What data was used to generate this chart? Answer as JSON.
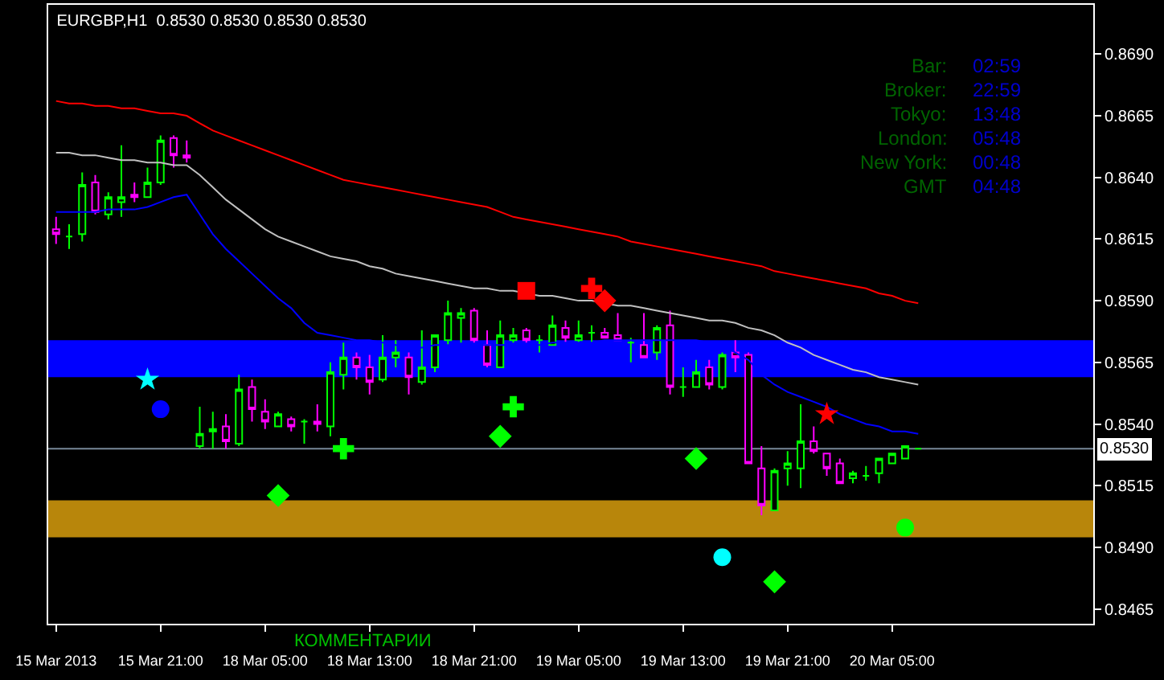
{
  "chart_data": {
    "type": "candlestick",
    "title": "EURGBP,H1  0.8530 0.8530 0.8530 0.8530",
    "categories": [
      "15 Mar 2013",
      null,
      null,
      null,
      null,
      null,
      null,
      null,
      "15 Mar 21:00",
      null,
      null,
      null,
      null,
      null,
      null,
      null,
      "18 Mar 05:00",
      null,
      null,
      null,
      null,
      null,
      null,
      null,
      "18 Mar 13:00",
      null,
      null,
      null,
      null,
      null,
      null,
      null,
      "18 Mar 21:00",
      null,
      null,
      null,
      null,
      null,
      null,
      null,
      "19 Mar 05:00",
      null,
      null,
      null,
      null,
      null,
      null,
      null,
      "19 Mar 13:00",
      null,
      null,
      null,
      null,
      null,
      null,
      null,
      "19 Mar 21:00",
      null,
      null,
      null,
      null,
      null,
      null,
      null,
      "20 Mar 05:00",
      null,
      null
    ],
    "ohlc": [
      [
        0.8619,
        0.8624,
        0.8613,
        0.8617
      ],
      [
        0.8616,
        0.8621,
        0.8611,
        0.8616
      ],
      [
        0.8617,
        0.8642,
        0.8614,
        0.8637
      ],
      [
        0.8638,
        0.8641,
        0.8625,
        0.8626
      ],
      [
        0.8625,
        0.8634,
        0.8623,
        0.8632
      ],
      [
        0.863,
        0.8653,
        0.8624,
        0.8632
      ],
      [
        0.8633,
        0.8638,
        0.863,
        0.8632
      ],
      [
        0.8632,
        0.8644,
        0.8632,
        0.8638
      ],
      [
        0.8638,
        0.8657,
        0.8637,
        0.8655
      ],
      [
        0.8656,
        0.8657,
        0.8644,
        0.8649
      ],
      [
        0.8649,
        0.8655,
        0.8646,
        0.8648
      ],
      [
        0.8531,
        0.8547,
        0.853,
        0.8536
      ],
      [
        0.8537,
        0.8545,
        0.853,
        0.8538
      ],
      [
        0.8539,
        0.8544,
        0.853,
        0.8533
      ],
      [
        0.8532,
        0.856,
        0.8531,
        0.8554
      ],
      [
        0.8555,
        0.8558,
        0.8541,
        0.8546
      ],
      [
        0.8545,
        0.855,
        0.8538,
        0.8541
      ],
      [
        0.8539,
        0.8545,
        0.8539,
        0.8544
      ],
      [
        0.8542,
        0.8543,
        0.8537,
        0.8539
      ],
      [
        0.8541,
        0.8542,
        0.8532,
        0.8541
      ],
      [
        0.8541,
        0.8548,
        0.8537,
        0.854
      ],
      [
        0.8539,
        0.8565,
        0.8535,
        0.8561
      ],
      [
        0.856,
        0.8573,
        0.8554,
        0.8567
      ],
      [
        0.8567,
        0.8569,
        0.8558,
        0.8563
      ],
      [
        0.8563,
        0.8568,
        0.8552,
        0.8557
      ],
      [
        0.8558,
        0.8576,
        0.8557,
        0.8567
      ],
      [
        0.8567,
        0.8574,
        0.8563,
        0.8569
      ],
      [
        0.8567,
        0.8569,
        0.8552,
        0.8559
      ],
      [
        0.8557,
        0.8578,
        0.8556,
        0.8563
      ],
      [
        0.8563,
        0.8576,
        0.8561,
        0.8576
      ],
      [
        0.8574,
        0.859,
        0.8572,
        0.8585
      ],
      [
        0.8583,
        0.8587,
        0.8573,
        0.8585
      ],
      [
        0.8586,
        0.8587,
        0.8573,
        0.8574
      ],
      [
        0.8572,
        0.8578,
        0.8563,
        0.8564
      ],
      [
        0.8563,
        0.8582,
        0.8563,
        0.8576
      ],
      [
        0.8574,
        0.8579,
        0.8573,
        0.8576
      ],
      [
        0.8578,
        0.8579,
        0.8573,
        0.8574
      ],
      [
        0.8574,
        0.8576,
        0.8569,
        0.8574
      ],
      [
        0.8572,
        0.8584,
        0.8572,
        0.858
      ],
      [
        0.8579,
        0.8582,
        0.8573,
        0.8575
      ],
      [
        0.8574,
        0.8582,
        0.8573,
        0.8576
      ],
      [
        0.8577,
        0.858,
        0.8573,
        0.8577
      ],
      [
        0.8577,
        0.8579,
        0.8575,
        0.8575
      ],
      [
        0.8576,
        0.8585,
        0.8574,
        0.8574
      ],
      [
        0.8573,
        0.8575,
        0.8565,
        0.8573
      ],
      [
        0.8572,
        0.8585,
        0.8567,
        0.8567
      ],
      [
        0.8569,
        0.858,
        0.8566,
        0.8579
      ],
      [
        0.858,
        0.8586,
        0.8552,
        0.8555
      ],
      [
        0.8555,
        0.8563,
        0.8551,
        0.8555
      ],
      [
        0.8555,
        0.8566,
        0.8555,
        0.8561
      ],
      [
        0.8563,
        0.8566,
        0.8554,
        0.8556
      ],
      [
        0.8555,
        0.8569,
        0.8554,
        0.8568
      ],
      [
        0.8569,
        0.8574,
        0.8561,
        0.8567
      ],
      [
        0.8568,
        0.8569,
        0.8524,
        0.8524
      ],
      [
        0.8522,
        0.8531,
        0.8503,
        0.8507
      ],
      [
        0.8505,
        0.8522,
        0.8505,
        0.8521
      ],
      [
        0.8522,
        0.8529,
        0.8515,
        0.8524
      ],
      [
        0.8522,
        0.8548,
        0.8514,
        0.8533
      ],
      [
        0.8533,
        0.8539,
        0.8528,
        0.8529
      ],
      [
        0.8528,
        0.8528,
        0.8519,
        0.8522
      ],
      [
        0.8524,
        0.8526,
        0.8516,
        0.8516
      ],
      [
        0.8518,
        0.8521,
        0.8516,
        0.852
      ],
      [
        0.8519,
        0.8523,
        0.8517,
        0.8519
      ],
      [
        0.852,
        0.8526,
        0.8516,
        0.8526
      ],
      [
        0.8524,
        0.8528,
        0.8524,
        0.8528
      ],
      [
        0.8526,
        0.8531,
        0.8526,
        0.8531
      ],
      [
        0.853,
        0.853,
        0.853,
        0.853
      ]
    ],
    "colors": [
      "#ff00ff",
      "#00ff00",
      "#00ff00",
      "#ff00ff",
      "#00ff00",
      "#00ff00",
      "#ff00ff",
      "#00ff00",
      "#00ff00",
      "#ff00ff",
      "#ff00ff",
      "#00ff00",
      "#00ff00",
      "#ff00ff",
      "#00ff00",
      "#ff00ff",
      "#ff00ff",
      "#00ff00",
      "#ff00ff",
      "#00ff00",
      "#ff00ff",
      "#00ff00",
      "#00ff00",
      "#ff00ff",
      "#ff00ff",
      "#00ff00",
      "#00ff00",
      "#ff00ff",
      "#00ff00",
      "#00ff00",
      "#00ff00",
      "#00ff00",
      "#ff00ff",
      "#ff00ff",
      "#00ff00",
      "#00ff00",
      "#ff00ff",
      "#00ff00",
      "#00ff00",
      "#ff00ff",
      "#00ff00",
      "#00ff00",
      "#ff00ff",
      "#ff00ff",
      "#00ff00",
      "#ff00ff",
      "#00ff00",
      "#ff00ff",
      "#00ff00",
      "#00ff00",
      "#ff00ff",
      "#00ff00",
      "#ff00ff",
      "#ff00ff",
      "#ff00ff",
      "#00ff00",
      "#00ff00",
      "#00ff00",
      "#ff00ff",
      "#ff00ff",
      "#ff00ff",
      "#00ff00",
      "#00ff00",
      "#00ff00",
      "#00ff00",
      "#00ff00",
      "#00ff00"
    ],
    "series": [
      {
        "type": "line",
        "color": "#ff0000",
        "values": [
          0.8671,
          0.867,
          0.867,
          0.8669,
          0.8669,
          0.8668,
          0.8668,
          0.8667,
          0.8666,
          0.8666,
          0.8665,
          0.8662,
          0.8659,
          0.8657,
          0.8655,
          0.8653,
          0.8651,
          0.8649,
          0.8647,
          0.8645,
          0.8643,
          0.8641,
          0.8639,
          0.8638,
          0.8637,
          0.8636,
          0.8635,
          0.8634,
          0.8633,
          0.8632,
          0.8631,
          0.863,
          0.8629,
          0.8628,
          0.8626,
          0.8624,
          0.8623,
          0.8622,
          0.8621,
          0.862,
          0.8619,
          0.8618,
          0.8617,
          0.8616,
          0.8614,
          0.8613,
          0.8612,
          0.8611,
          0.861,
          0.8609,
          0.8608,
          0.8607,
          0.8606,
          0.8605,
          0.8604,
          0.8602,
          0.8601,
          0.86,
          0.8599,
          0.8598,
          0.8597,
          0.8596,
          0.8595,
          0.8593,
          0.8592,
          0.859,
          0.8589
        ]
      },
      {
        "type": "line",
        "color": "#c0c0c0",
        "values": [
          0.865,
          0.865,
          0.8649,
          0.8649,
          0.8648,
          0.8647,
          0.8647,
          0.8646,
          0.8646,
          0.8645,
          0.8645,
          0.8641,
          0.8636,
          0.8631,
          0.8627,
          0.8623,
          0.8619,
          0.8616,
          0.8614,
          0.8612,
          0.861,
          0.8608,
          0.8607,
          0.8606,
          0.8604,
          0.8603,
          0.8601,
          0.86,
          0.8599,
          0.8598,
          0.8597,
          0.8596,
          0.8595,
          0.8595,
          0.8594,
          0.8594,
          0.8593,
          0.8592,
          0.8592,
          0.8591,
          0.859,
          0.859,
          0.8589,
          0.8588,
          0.8588,
          0.8587,
          0.8586,
          0.8585,
          0.8584,
          0.8583,
          0.8582,
          0.8582,
          0.8581,
          0.8579,
          0.8578,
          0.8576,
          0.8573,
          0.8571,
          0.8568,
          0.8566,
          0.8564,
          0.8562,
          0.8561,
          0.8559,
          0.8558,
          0.8557,
          0.8556
        ]
      },
      {
        "type": "line",
        "color": "#0000ff",
        "values": [
          0.8626,
          0.8626,
          0.8626,
          0.8626,
          0.8627,
          0.8627,
          0.8627,
          0.8628,
          0.863,
          0.8632,
          0.8633,
          0.8625,
          0.8617,
          0.8611,
          0.8606,
          0.8601,
          0.8596,
          0.8591,
          0.8587,
          0.8581,
          0.8577,
          0.8576,
          0.8575,
          0.8574,
          0.8574,
          0.8573,
          0.8572,
          0.8571,
          0.8571,
          0.8572,
          0.8572,
          0.8572,
          0.8572,
          0.8572,
          0.8572,
          0.8572,
          0.8572,
          0.8572,
          0.8573,
          0.8573,
          0.8573,
          0.8573,
          0.8574,
          0.8574,
          0.8574,
          0.8574,
          0.8574,
          0.8574,
          0.8574,
          0.8574,
          0.8573,
          0.8572,
          0.8569,
          0.8566,
          0.856,
          0.8556,
          0.8553,
          0.8551,
          0.8549,
          0.8547,
          0.8544,
          0.8542,
          0.854,
          0.8539,
          0.8537,
          0.8537,
          0.8536
        ]
      },
      {
        "type": "scatter",
        "marker": "star",
        "color": "#00ffff",
        "values": [
          null,
          null,
          null,
          null,
          null,
          null,
          null,
          0.8558,
          null,
          null,
          null,
          null,
          null,
          null,
          null,
          null,
          null,
          null,
          null,
          null,
          null,
          null,
          null,
          null,
          null,
          null,
          null,
          null,
          null,
          null,
          null,
          null,
          null,
          null,
          null,
          null,
          null,
          null,
          null,
          null,
          null,
          null,
          null,
          null,
          null,
          null,
          null,
          null,
          null,
          null,
          null,
          null,
          null,
          null,
          null,
          null,
          null,
          null,
          null,
          null,
          null,
          null,
          null,
          null,
          null,
          null,
          null
        ]
      },
      {
        "type": "scatter",
        "marker": "circle",
        "color": "#0000ff",
        "values": [
          null,
          null,
          null,
          null,
          null,
          null,
          null,
          null,
          0.8546,
          null,
          null,
          null,
          null,
          null,
          null,
          null,
          null,
          null,
          null,
          null,
          null,
          null,
          null,
          null,
          null,
          null,
          null,
          null,
          null,
          null,
          null,
          null,
          null,
          null,
          null,
          null,
          null,
          null,
          null,
          null,
          null,
          null,
          null,
          null,
          null,
          null,
          null,
          null,
          null,
          null,
          null,
          null,
          null,
          null,
          null,
          null,
          null,
          null,
          null,
          null,
          null,
          null,
          null,
          null,
          null,
          null,
          null
        ]
      },
      {
        "type": "scatter",
        "marker": "diamond",
        "color": "#00ff00",
        "values": [
          null,
          null,
          null,
          null,
          null,
          null,
          null,
          null,
          null,
          null,
          null,
          null,
          null,
          null,
          null,
          null,
          null,
          0.8511,
          null,
          null,
          null,
          null,
          null,
          null,
          null,
          null,
          null,
          null,
          null,
          null,
          null,
          null,
          null,
          null,
          0.8535,
          null,
          null,
          null,
          null,
          null,
          null,
          null,
          null,
          null,
          null,
          null,
          null,
          null,
          null,
          0.8526,
          null,
          null,
          null,
          null,
          null,
          0.8476,
          null,
          null,
          null,
          null,
          null,
          null,
          null,
          null,
          null,
          null,
          null
        ]
      },
      {
        "type": "scatter",
        "marker": "cross",
        "color": "#00ff00",
        "values": [
          null,
          null,
          null,
          null,
          null,
          null,
          null,
          null,
          null,
          null,
          null,
          null,
          null,
          null,
          null,
          null,
          null,
          null,
          null,
          null,
          null,
          null,
          0.853,
          null,
          null,
          null,
          null,
          null,
          null,
          null,
          null,
          null,
          null,
          null,
          null,
          0.8547,
          null,
          null,
          null,
          null,
          null,
          null,
          null,
          null,
          null,
          null,
          null,
          null,
          null,
          null,
          null,
          null,
          null,
          null,
          null,
          null,
          null,
          null,
          null,
          null,
          null,
          null,
          null,
          null,
          null,
          null,
          null
        ]
      },
      {
        "type": "scatter",
        "marker": "square",
        "color": "#ff0000",
        "values": [
          null,
          null,
          null,
          null,
          null,
          null,
          null,
          null,
          null,
          null,
          null,
          null,
          null,
          null,
          null,
          null,
          null,
          null,
          null,
          null,
          null,
          null,
          null,
          null,
          null,
          null,
          null,
          null,
          null,
          null,
          null,
          null,
          null,
          null,
          null,
          null,
          0.8594,
          null,
          null,
          null,
          null,
          null,
          null,
          null,
          null,
          null,
          null,
          null,
          null,
          null,
          null,
          null,
          null,
          null,
          null,
          null,
          null,
          null,
          null,
          null,
          null,
          null,
          null,
          null,
          null,
          null,
          null
        ]
      },
      {
        "type": "scatter",
        "marker": "cross",
        "color": "#ff0000",
        "values": [
          null,
          null,
          null,
          null,
          null,
          null,
          null,
          null,
          null,
          null,
          null,
          null,
          null,
          null,
          null,
          null,
          null,
          null,
          null,
          null,
          null,
          null,
          null,
          null,
          null,
          null,
          null,
          null,
          null,
          null,
          null,
          null,
          null,
          null,
          null,
          null,
          null,
          null,
          null,
          null,
          null,
          0.8595,
          null,
          null,
          null,
          null,
          null,
          null,
          null,
          null,
          null,
          null,
          null,
          null,
          null,
          null,
          null,
          null,
          null,
          null,
          null,
          null,
          null,
          null,
          null,
          null,
          null
        ]
      },
      {
        "type": "scatter",
        "marker": "diamond",
        "color": "#ff0000",
        "values": [
          null,
          null,
          null,
          null,
          null,
          null,
          null,
          null,
          null,
          null,
          null,
          null,
          null,
          null,
          null,
          null,
          null,
          null,
          null,
          null,
          null,
          null,
          null,
          null,
          null,
          null,
          null,
          null,
          null,
          null,
          null,
          null,
          null,
          null,
          null,
          null,
          null,
          null,
          null,
          null,
          null,
          null,
          0.859,
          null,
          null,
          null,
          null,
          null,
          null,
          null,
          null,
          null,
          null,
          null,
          null,
          null,
          null,
          null,
          null,
          null,
          null,
          null,
          null,
          null,
          null,
          null,
          null
        ]
      },
      {
        "type": "scatter",
        "marker": "star",
        "color": "#ff0000",
        "values": [
          null,
          null,
          null,
          null,
          null,
          null,
          null,
          null,
          null,
          null,
          null,
          null,
          null,
          null,
          null,
          null,
          null,
          null,
          null,
          null,
          null,
          null,
          null,
          null,
          null,
          null,
          null,
          null,
          null,
          null,
          null,
          null,
          null,
          null,
          null,
          null,
          null,
          null,
          null,
          null,
          null,
          null,
          null,
          null,
          null,
          null,
          null,
          null,
          null,
          null,
          null,
          null,
          null,
          null,
          null,
          null,
          null,
          null,
          null,
          0.8544,
          null,
          null,
          null,
          null,
          null,
          null,
          null
        ]
      },
      {
        "type": "scatter",
        "marker": "circle",
        "color": "#00ffff",
        "values": [
          null,
          null,
          null,
          null,
          null,
          null,
          null,
          null,
          null,
          null,
          null,
          null,
          null,
          null,
          null,
          null,
          null,
          null,
          null,
          null,
          null,
          null,
          null,
          null,
          null,
          null,
          null,
          null,
          null,
          null,
          null,
          null,
          null,
          null,
          null,
          null,
          null,
          null,
          null,
          null,
          null,
          null,
          null,
          null,
          null,
          null,
          null,
          null,
          null,
          null,
          null,
          0.8486,
          null,
          null,
          null,
          null,
          null,
          null,
          null,
          null,
          null,
          null,
          null,
          null,
          null,
          null,
          null
        ]
      },
      {
        "type": "scatter",
        "marker": "circle",
        "color": "#00ff00",
        "values": [
          null,
          null,
          null,
          null,
          null,
          null,
          null,
          null,
          null,
          null,
          null,
          null,
          null,
          null,
          null,
          null,
          null,
          null,
          null,
          null,
          null,
          null,
          null,
          null,
          null,
          null,
          null,
          null,
          null,
          null,
          null,
          null,
          null,
          null,
          null,
          null,
          null,
          null,
          null,
          null,
          null,
          null,
          null,
          null,
          null,
          null,
          null,
          null,
          null,
          null,
          null,
          null,
          null,
          null,
          null,
          null,
          null,
          null,
          null,
          null,
          null,
          null,
          null,
          null,
          null,
          0.8498,
          null
        ]
      }
    ],
    "bands": [
      {
        "axis": "y",
        "from": 0.8559,
        "to": 0.8574,
        "color": "#0000ff"
      },
      {
        "axis": "y",
        "from": 0.8494,
        "to": 0.8509,
        "color": "#b8860b"
      }
    ],
    "ref_lines": [
      {
        "axis": "y",
        "value": 0.853,
        "label": "0.8530",
        "color": "#778899"
      }
    ],
    "ylim": [
      0.8459,
      0.871
    ],
    "yticks": [
      {
        "value": 0.869,
        "label": "0.8690"
      },
      0.8665,
      {
        "value": 0.864,
        "label": "0.8640"
      },
      0.8615,
      {
        "value": 0.859,
        "label": "0.8590"
      },
      0.8565,
      {
        "value": 0.854,
        "label": "0.8540"
      },
      0.8515,
      {
        "value": 0.849,
        "label": "0.8490"
      },
      0.8465
    ],
    "annotations": [
      "Bar:",
      "02:59",
      "Broker:",
      "22:59",
      "Tokyo:",
      "13:48",
      "London:",
      "05:48",
      "New York:",
      "00:48",
      "GMT",
      "04:48",
      "КОММЕНТАРИИ"
    ]
  }
}
